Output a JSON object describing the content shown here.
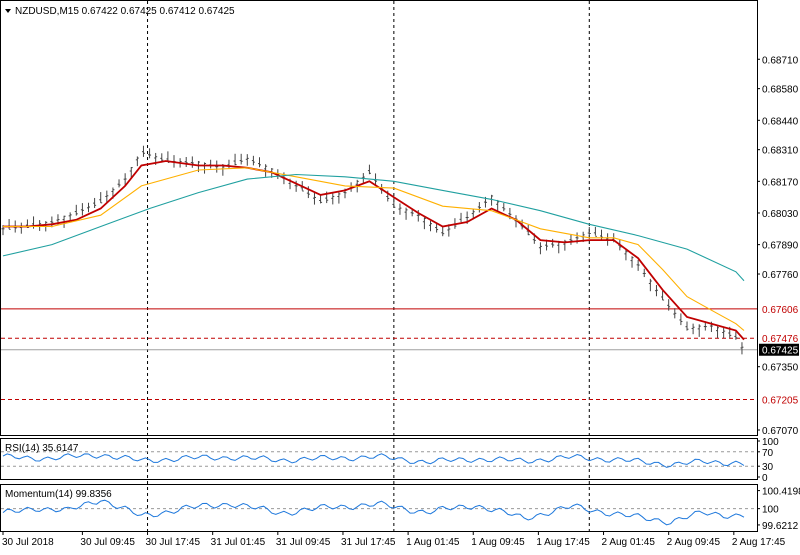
{
  "colors": {
    "background": "#ffffff",
    "frame": "#000000",
    "bars": "#444444",
    "ma_fast": "#c00000",
    "ma_mid": "#ffb000",
    "ma_slow": "#20a0a0",
    "level_line": "#c00000",
    "current_price_line": "#a0a0a0",
    "current_price_tag": "#000000",
    "oscillator": "#1e78dc",
    "oscillator_level": "#999999"
  },
  "chart_data": [
    {
      "type": "line",
      "panel": "price",
      "header": "NZDUSD,M15  0.67422 0.67425 0.67412 0.67425",
      "header_icon": "triangle-down-icon",
      "ylim": [
        0.6707,
        0.6895
      ],
      "y_ticks": [
        "0.68710",
        "0.68580",
        "0.68440",
        "0.68310",
        "0.68170",
        "0.68030",
        "0.67890",
        "0.67760",
        "0.67350",
        "0.67070"
      ],
      "x_ticks": [
        "30 Jul 2018",
        "30 Jul 09:45",
        "30 Jul 17:45",
        "31 Jul 01:45",
        "31 Jul 09:45",
        "31 Jul 17:45",
        "1 Aug 01:45",
        "1 Aug 09:45",
        "1 Aug 17:45",
        "2 Aug 01:45",
        "2 Aug 09:45",
        "2 Aug 17:45"
      ],
      "day_separators": [
        "30 Jul 17:45",
        "1 Aug 00:00",
        "2 Aug 00:00"
      ],
      "series": [
        {
          "role": "bars",
          "x": [
            "30 Jul 00:00",
            "30 Jul 03:00",
            "30 Jul 06:00",
            "30 Jul 09:00",
            "30 Jul 12:00",
            "30 Jul 15:00",
            "30 Jul 17:00",
            "30 Jul 20:00",
            "31 Jul 00:00",
            "31 Jul 03:00",
            "31 Jul 06:00",
            "31 Jul 09:00",
            "31 Jul 12:00",
            "31 Jul 15:00",
            "31 Jul 18:00",
            "31 Jul 21:00",
            "1 Aug 00:00",
            "1 Aug 03:00",
            "1 Aug 06:00",
            "1 Aug 09:00",
            "1 Aug 12:00",
            "1 Aug 15:00",
            "1 Aug 18:00",
            "1 Aug 21:00",
            "2 Aug 00:00",
            "2 Aug 03:00",
            "2 Aug 06:00",
            "2 Aug 09:00",
            "2 Aug 12:00",
            "2 Aug 15:00",
            "2 Aug 18:00",
            "2 Aug 19:00"
          ],
          "y": [
            0.6796,
            0.6797,
            0.6799,
            0.6803,
            0.6808,
            0.6818,
            0.683,
            0.6826,
            0.6825,
            0.6823,
            0.6827,
            0.6822,
            0.6815,
            0.6808,
            0.6812,
            0.6821,
            0.6806,
            0.6802,
            0.6794,
            0.6801,
            0.681,
            0.68,
            0.6788,
            0.679,
            0.6794,
            0.6791,
            0.678,
            0.6765,
            0.6752,
            0.6753,
            0.6748,
            0.6742
          ]
        },
        {
          "role": "ma_fast",
          "x": [
            "30 Jul 00:00",
            "30 Jul 03:00",
            "30 Jul 06:00",
            "30 Jul 09:00",
            "30 Jul 12:00",
            "30 Jul 15:00",
            "30 Jul 17:00",
            "30 Jul 20:00",
            "31 Jul 00:00",
            "31 Jul 03:00",
            "31 Jul 06:00",
            "31 Jul 09:00",
            "31 Jul 12:00",
            "31 Jul 15:00",
            "31 Jul 18:00",
            "31 Jul 21:00",
            "1 Aug 00:00",
            "1 Aug 03:00",
            "1 Aug 06:00",
            "1 Aug 09:00",
            "1 Aug 12:00",
            "1 Aug 15:00",
            "1 Aug 18:00",
            "1 Aug 21:00",
            "2 Aug 00:00",
            "2 Aug 03:00",
            "2 Aug 06:00",
            "2 Aug 09:00",
            "2 Aug 12:00",
            "2 Aug 15:00",
            "2 Aug 18:00",
            "2 Aug 19:00"
          ],
          "y": [
            0.6797,
            0.6797,
            0.6798,
            0.68,
            0.6805,
            0.6815,
            0.6824,
            0.6826,
            0.6824,
            0.6824,
            0.6823,
            0.6821,
            0.6816,
            0.6811,
            0.6813,
            0.6817,
            0.681,
            0.6803,
            0.6797,
            0.6799,
            0.6805,
            0.68,
            0.6791,
            0.679,
            0.6791,
            0.6791,
            0.6783,
            0.6769,
            0.6757,
            0.6754,
            0.6751,
            0.6747
          ]
        },
        {
          "role": "ma_mid",
          "x": [
            "30 Jul 00:00",
            "30 Jul 06:00",
            "30 Jul 12:00",
            "30 Jul 17:00",
            "31 Jul 00:00",
            "31 Jul 06:00",
            "31 Jul 12:00",
            "31 Jul 18:00",
            "1 Aug 00:00",
            "1 Aug 06:00",
            "1 Aug 12:00",
            "1 Aug 18:00",
            "2 Aug 00:00",
            "2 Aug 03:00",
            "2 Aug 06:00",
            "2 Aug 09:00",
            "2 Aug 12:00",
            "2 Aug 15:00",
            "2 Aug 18:00",
            "2 Aug 19:00"
          ],
          "y": [
            0.6797,
            0.6797,
            0.6802,
            0.6815,
            0.6822,
            0.6823,
            0.6819,
            0.6815,
            0.6814,
            0.6806,
            0.6804,
            0.6796,
            0.6792,
            0.6792,
            0.6789,
            0.6778,
            0.6766,
            0.676,
            0.6754,
            0.6751
          ]
        },
        {
          "role": "ma_slow",
          "x": [
            "30 Jul 00:00",
            "30 Jul 06:00",
            "30 Jul 12:00",
            "30 Jul 18:00",
            "31 Jul 00:00",
            "31 Jul 06:00",
            "31 Jul 12:00",
            "31 Jul 18:00",
            "1 Aug 00:00",
            "1 Aug 06:00",
            "1 Aug 12:00",
            "1 Aug 18:00",
            "2 Aug 00:00",
            "2 Aug 06:00",
            "2 Aug 12:00",
            "2 Aug 18:00",
            "2 Aug 19:00"
          ],
          "y": [
            0.6784,
            0.6789,
            0.6797,
            0.6805,
            0.6812,
            0.6818,
            0.682,
            0.6819,
            0.6817,
            0.6813,
            0.6809,
            0.6804,
            0.6798,
            0.6793,
            0.6787,
            0.6777,
            0.6773
          ]
        }
      ],
      "levels": [
        {
          "value": "0.67606",
          "style": "solid"
        },
        {
          "value": "0.67476",
          "style": "dashed"
        },
        {
          "value": "0.67205",
          "style": "dashed"
        }
      ],
      "current_price": "0.67425"
    },
    {
      "type": "line",
      "panel": "rsi",
      "header": "RSI(14) 35.6147",
      "ylim": [
        0,
        100
      ],
      "y_ticks": [
        "100",
        "70",
        "30",
        "0"
      ],
      "levels": [
        70,
        30
      ],
      "series": [
        {
          "role": "oscillator",
          "x": [
            "30 Jul 00:00",
            "30 Jul 06:00",
            "30 Jul 12:00",
            "30 Jul 17:00",
            "30 Jul 22:00",
            "31 Jul 04:00",
            "31 Jul 10:00",
            "31 Jul 16:00",
            "31 Jul 22:00",
            "1 Aug 04:00",
            "1 Aug 10:00",
            "1 Aug 16:00",
            "1 Aug 22:00",
            "2 Aug 04:00",
            "2 Aug 10:00",
            "2 Aug 14:00",
            "2 Aug 18:00",
            "2 Aug 19:00"
          ],
          "y": [
            55,
            52,
            62,
            45,
            52,
            55,
            47,
            52,
            56,
            42,
            50,
            45,
            55,
            47,
            35,
            42,
            40,
            36
          ]
        }
      ]
    },
    {
      "type": "line",
      "panel": "momentum",
      "header": "Momentum(14) 99.8356",
      "ylim": [
        99.55,
        100.48
      ],
      "y_ticks": [
        "100.4198",
        "100",
        "99.6212"
      ],
      "levels": [
        100
      ],
      "series": [
        {
          "role": "oscillator",
          "x": [
            "30 Jul 00:00",
            "30 Jul 04:00",
            "30 Jul 08:00",
            "30 Jul 12:00",
            "30 Jul 17:00",
            "30 Jul 22:00",
            "31 Jul 04:00",
            "31 Jul 10:00",
            "31 Jul 16:00",
            "31 Jul 22:00",
            "1 Aug 04:00",
            "1 Aug 10:00",
            "1 Aug 16:00",
            "1 Aug 22:00",
            "2 Aug 04:00",
            "2 Aug 10:00",
            "2 Aug 14:00",
            "2 Aug 18:00",
            "2 Aug 19:00"
          ],
          "y": [
            99.88,
            100.02,
            99.95,
            100.22,
            99.82,
            100.0,
            100.12,
            99.9,
            100.03,
            100.1,
            99.92,
            100.08,
            99.78,
            100.05,
            99.85,
            99.7,
            99.9,
            99.84,
            99.84
          ]
        }
      ]
    }
  ]
}
